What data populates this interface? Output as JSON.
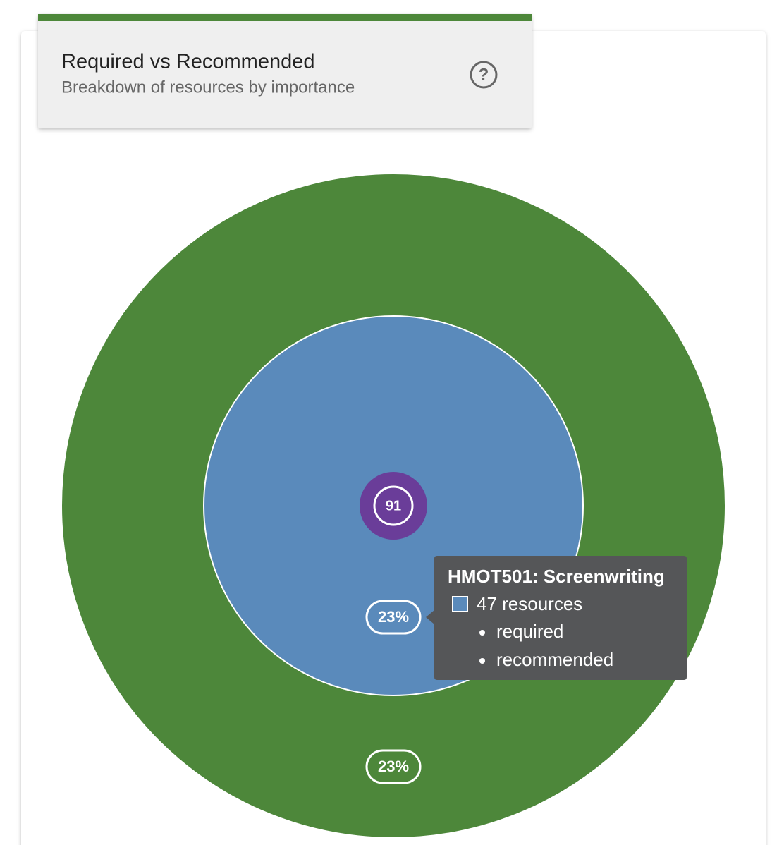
{
  "header": {
    "title": "Required vs Recommended",
    "subtitle": "Breakdown of resources by importance"
  },
  "chart": {
    "center": {
      "label": "91",
      "color": "#6a3d99"
    },
    "rings": [
      {
        "label": "23%",
        "color": "#5a8abb"
      },
      {
        "label": "23%",
        "color": "#4d873a"
      }
    ]
  },
  "tooltip": {
    "title": "HMOT501: Screenwriting",
    "count": "47 resources",
    "items": [
      "required",
      "recommended"
    ]
  }
}
